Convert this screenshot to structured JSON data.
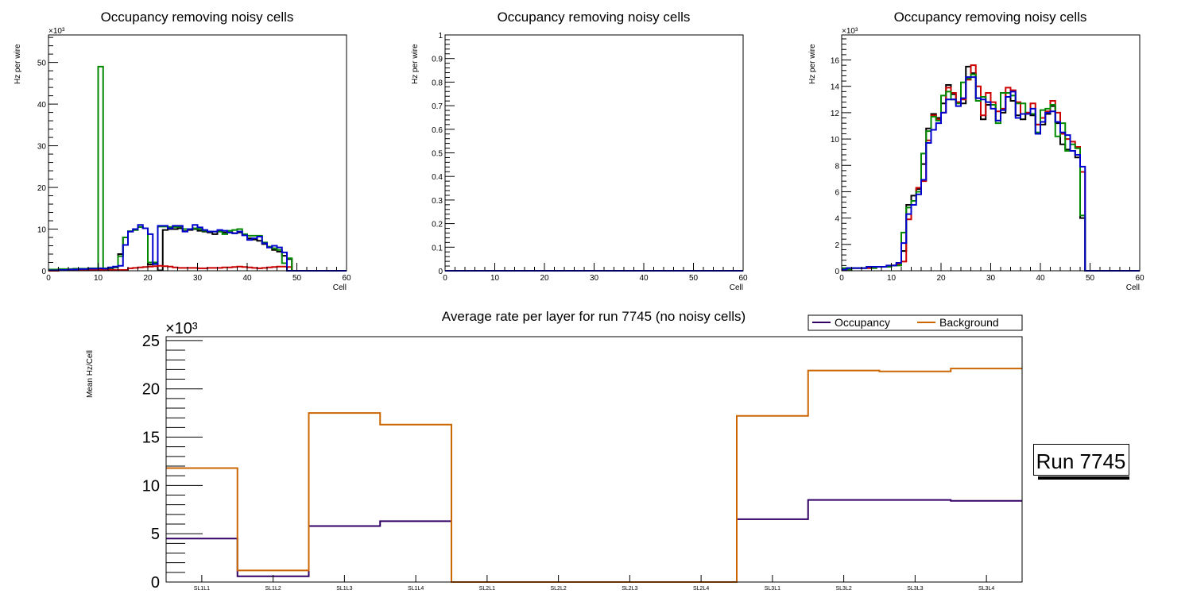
{
  "chart_data": [
    {
      "id": "plot1",
      "type": "line",
      "style": "step-histogram",
      "title": "Occupancy removing noisy cells",
      "xlabel": "Cell",
      "ylabel": "Hz per wire",
      "yexponent": "×10³",
      "xlim": [
        0,
        60
      ],
      "ylim": [
        0,
        56.6
      ],
      "xticks": [
        0,
        10,
        20,
        30,
        40,
        50,
        60
      ],
      "yticks": [
        0,
        10,
        20,
        30,
        40,
        50
      ],
      "yunit_scale": 1000,
      "series": [
        {
          "name": "layer-black",
          "color": "#000000",
          "values": [
            0.1,
            0.1,
            0.2,
            0.2,
            0.2,
            0.3,
            0.3,
            0.3,
            0.4,
            0.4,
            0.5,
            0.5,
            0.6,
            0.8,
            4,
            8,
            9.4,
            9.8,
            10.5,
            10.2,
            1.5,
            1.8,
            0.1,
            9.8,
            10,
            10,
            10.2,
            9.5,
            9.8,
            10,
            9.6,
            9.4,
            9.2,
            8.8,
            9.4,
            9.2,
            9.2,
            9,
            9.2,
            8.6,
            7.8,
            7.5,
            7.2,
            6.4,
            5.6,
            5,
            4.6,
            3.6,
            2.8,
            0,
            0,
            0,
            0,
            0,
            0,
            0,
            0,
            0,
            0,
            0
          ]
        },
        {
          "name": "layer-red",
          "color": "#cc0000",
          "values": [
            0,
            0,
            0.1,
            0.1,
            0.1,
            0.1,
            0.1,
            0.1,
            0.2,
            0.2,
            0.2,
            0.2,
            0.2,
            0.2,
            0.2,
            0.2,
            0.6,
            0.7,
            0.8,
            0.9,
            1,
            1.1,
            1.2,
            1.1,
            1,
            0.8,
            0.7,
            0.7,
            0.7,
            0.7,
            0.6,
            0.6,
            0.7,
            0.7,
            0.7,
            0.8,
            0.8,
            0.9,
            1,
            0.9,
            0.8,
            0.7,
            0.6,
            0.7,
            0.8,
            0.9,
            1,
            1,
            0.9,
            0,
            0,
            0,
            0,
            0,
            0,
            0,
            0,
            0,
            0,
            0
          ]
        },
        {
          "name": "layer-green",
          "color": "#008800",
          "values": [
            0.3,
            0.3,
            0.4,
            0.4,
            0.4,
            0.5,
            0.5,
            0.5,
            0.6,
            0.6,
            49,
            0.6,
            0.7,
            0.9,
            3.5,
            8,
            9.5,
            9.8,
            10.5,
            10.2,
            2,
            2,
            10.6,
            10.6,
            10.5,
            10.5,
            10.6,
            10,
            10,
            10.2,
            10,
            9.6,
            9.4,
            9.4,
            9.4,
            8.8,
            9.6,
            9.8,
            10,
            8.8,
            8.4,
            8.4,
            8.4,
            6.8,
            5.8,
            5.4,
            5,
            1.8,
            3,
            0,
            0,
            0,
            0,
            0,
            0,
            0,
            0,
            0,
            0,
            0
          ]
        },
        {
          "name": "layer-blue",
          "color": "#0000cc",
          "values": [
            0.1,
            0.1,
            0.2,
            0.2,
            0.3,
            0.3,
            0.4,
            0.4,
            0.5,
            0.5,
            0.6,
            0.5,
            0.8,
            1,
            1.2,
            6.2,
            9.4,
            10,
            11,
            10.2,
            8.8,
            1.6,
            10.8,
            10.8,
            10.2,
            10.8,
            10.8,
            9.4,
            10,
            11,
            10.4,
            9.8,
            9.4,
            9.4,
            9.8,
            9.6,
            9.2,
            9,
            9.4,
            8.5,
            7.4,
            7.8,
            8.2,
            6.6,
            5.6,
            6,
            5.6,
            4.4,
            0,
            0,
            0,
            0,
            0,
            0,
            0,
            0,
            0,
            0,
            0,
            0
          ]
        }
      ]
    },
    {
      "id": "plot2",
      "type": "line",
      "style": "step-histogram",
      "title": "Occupancy removing noisy cells",
      "xlabel": "Cell",
      "ylabel": "Hz per wire",
      "xlim": [
        0,
        60
      ],
      "ylim": [
        0,
        1
      ],
      "xticks": [
        0,
        10,
        20,
        30,
        40,
        50,
        60
      ],
      "yticks": [
        0,
        0.1,
        0.2,
        0.3,
        0.4,
        0.5,
        0.6,
        0.7,
        0.8,
        0.9,
        1
      ],
      "series": [
        {
          "name": "layer-blue",
          "color": "#0000cc",
          "values": [
            0,
            0,
            0,
            0,
            0,
            0,
            0,
            0,
            0,
            0,
            0,
            0,
            0,
            0,
            0,
            0,
            0,
            0,
            0,
            0,
            0,
            0,
            0,
            0,
            0,
            0,
            0,
            0,
            0,
            0,
            0,
            0,
            0,
            0,
            0,
            0,
            0,
            0,
            0,
            0,
            0,
            0,
            0,
            0,
            0,
            0,
            0,
            0,
            0,
            0,
            0,
            0,
            0,
            0,
            0,
            0,
            0,
            0,
            0,
            0
          ]
        }
      ]
    },
    {
      "id": "plot3",
      "type": "line",
      "style": "step-histogram",
      "title": "Occupancy removing noisy cells",
      "xlabel": "Cell",
      "ylabel": "Hz per wire",
      "yexponent": "×10³",
      "xlim": [
        0,
        60
      ],
      "ylim": [
        0,
        17.9
      ],
      "xticks": [
        0,
        10,
        20,
        30,
        40,
        50,
        60
      ],
      "yticks": [
        0,
        2,
        4,
        6,
        8,
        10,
        12,
        14,
        16
      ],
      "yunit_scale": 1000,
      "series": [
        {
          "name": "layer-black",
          "color": "#000000",
          "values": [
            0.1,
            0.2,
            0.2,
            0.2,
            0.2,
            0.2,
            0.3,
            0.3,
            0.3,
            0.3,
            0.4,
            0.5,
            1.5,
            5,
            5.7,
            6.2,
            8.1,
            10.8,
            11.9,
            11.6,
            12.7,
            14.1,
            13.4,
            12.8,
            12.7,
            15.5,
            15,
            13.1,
            11.5,
            12.6,
            12.6,
            11.4,
            12,
            13.5,
            12.9,
            11.8,
            11.5,
            12,
            11.8,
            11.1,
            11.1,
            11.9,
            12.5,
            11.2,
            9.6,
            9.2,
            9.1,
            8.6,
            4,
            0,
            0,
            0,
            0,
            0,
            0,
            0,
            0,
            0,
            0,
            0
          ]
        },
        {
          "name": "layer-red",
          "color": "#cc0000",
          "values": [
            0.1,
            0.1,
            0.2,
            0.2,
            0.2,
            0.2,
            0.2,
            0.3,
            0.3,
            0.3,
            0.4,
            0.5,
            0.7,
            3.9,
            5.3,
            6.3,
            6.8,
            9.9,
            11.8,
            11.5,
            12,
            13.9,
            13.5,
            12.8,
            13,
            14.5,
            15.6,
            14,
            11.8,
            13.5,
            12.8,
            12.1,
            12.3,
            13.9,
            13.7,
            12.8,
            11.9,
            12,
            12.7,
            11.1,
            11.6,
            12.1,
            12.9,
            12,
            10.4,
            10,
            9.8,
            9.4,
            7.5,
            0,
            0,
            0,
            0,
            0,
            0,
            0,
            0,
            0,
            0,
            0
          ]
        },
        {
          "name": "layer-green",
          "color": "#008800",
          "values": [
            0.2,
            0.1,
            0.2,
            0.2,
            0.2,
            0.3,
            0.2,
            0.3,
            0.3,
            0.3,
            0.4,
            0.4,
            2.9,
            4.8,
            5.3,
            6,
            8.9,
            10.6,
            11.7,
            11.4,
            13.3,
            13.6,
            13,
            12.7,
            14.3,
            14.6,
            14.9,
            12.9,
            13.2,
            12.8,
            12.6,
            11.2,
            13.5,
            13.5,
            13.3,
            12.7,
            12.7,
            11.9,
            11.9,
            10.5,
            12.2,
            12.3,
            12.6,
            10.2,
            11.2,
            9.1,
            9.6,
            9.3,
            4.2,
            0,
            0,
            0,
            0,
            0,
            0,
            0,
            0,
            0,
            0,
            0
          ]
        },
        {
          "name": "layer-blue",
          "color": "#0000cc",
          "values": [
            0.1,
            0.2,
            0.2,
            0.2,
            0.2,
            0.3,
            0.3,
            0.3,
            0.3,
            0.4,
            0.4,
            0.6,
            2.1,
            4.3,
            5,
            5.8,
            6.9,
            9.7,
            10.7,
            11.2,
            12,
            13,
            13,
            12.5,
            13.1,
            14.7,
            14.7,
            13.1,
            13,
            12.8,
            12.3,
            11.4,
            12.2,
            13.2,
            13.6,
            11.6,
            11.9,
            11.9,
            12.3,
            10.4,
            11.3,
            12,
            12.1,
            11.3,
            10.5,
            10.3,
            9.1,
            8.8,
            7.9,
            0,
            0,
            0,
            0,
            0,
            0,
            0,
            0,
            0,
            0,
            0
          ]
        }
      ]
    },
    {
      "id": "plot4",
      "type": "line",
      "style": "step-histogram",
      "title": "Average rate per layer for run 7745 (no noisy cells)",
      "xlabel": "",
      "ylabel": "Mean Hz/Cell",
      "yexponent": "×10³",
      "ylim": [
        0,
        25.4
      ],
      "yticks": [
        0,
        5,
        10,
        15,
        20,
        25
      ],
      "yunit_scale": 1000,
      "categories": [
        "SL1L1",
        "SL1L2",
        "SL1L3",
        "SL1L4",
        "SL2L1",
        "SL2L2",
        "SL2L3",
        "SL2L4",
        "SL3L1",
        "SL3L2",
        "SL3L3",
        "SL3L4"
      ],
      "legend": {
        "position": "top-right",
        "entries": [
          "Occupancy",
          "Background"
        ]
      },
      "series": [
        {
          "name": "Occupancy",
          "color": "#330066",
          "values": [
            4.5,
            0.6,
            5.8,
            6.3,
            0,
            0,
            0,
            0,
            6.5,
            8.5,
            8.5,
            8.4
          ]
        },
        {
          "name": "Background",
          "color": "#cc6600",
          "values": [
            11.8,
            1.2,
            17.5,
            16.3,
            0,
            0,
            0,
            0,
            17.2,
            21.9,
            21.8,
            22.1
          ]
        }
      ]
    }
  ],
  "run_label": "Run 7745"
}
